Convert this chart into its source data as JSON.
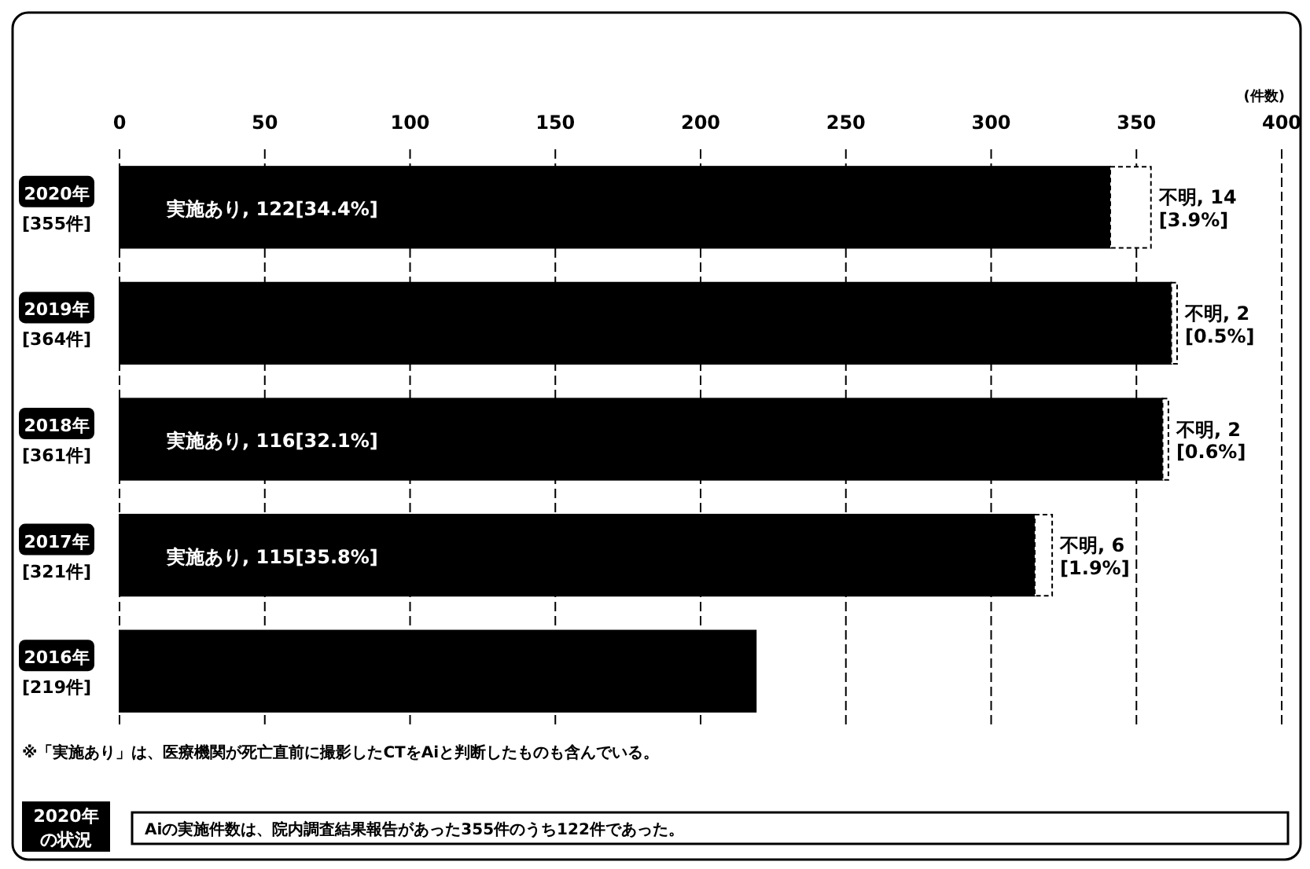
{
  "chart_data": {
    "type": "bar",
    "orientation": "horizontal",
    "stacked": true,
    "categories": [
      "2020年\n[355件]",
      "2019年\n[364件]",
      "2018年\n[361件]",
      "2017年\n[321件]",
      "2016年\n[219件]"
    ],
    "series": [
      {
        "color": "#000000",
        "values": [
          341,
          362,
          359,
          315,
          219
        ]
      },
      {
        "color": "#ffffff",
        "values": [
          14,
          2,
          2,
          6,
          null
        ],
        "value_labels": [
          "不明, 14\n[3.9%]",
          "不明, 2\n[0.5%]",
          "不明, 2\n[0.6%]",
          "不明, 6\n[1.9%]",
          null
        ]
      }
    ],
    "xlim": [
      0,
      400
    ],
    "xticks": [
      0,
      50,
      100,
      150,
      200,
      250,
      300,
      350,
      400
    ],
    "xlabel": "(件数)",
    "grid": "x",
    "annotations": [
      "実施あり, 122[34.4%]",
      "実施あり, 116[32.1%]",
      "実施あり, 115[35.8%]",
      "※「実施あり」は、医療機関が死亡直前に撮影したCTをAiと判断したものも含んでいる。",
      "2020年",
      "の状況",
      "Aiの実施件数は、院内調査結果報告があった355件のうち122件であった。"
    ]
  }
}
